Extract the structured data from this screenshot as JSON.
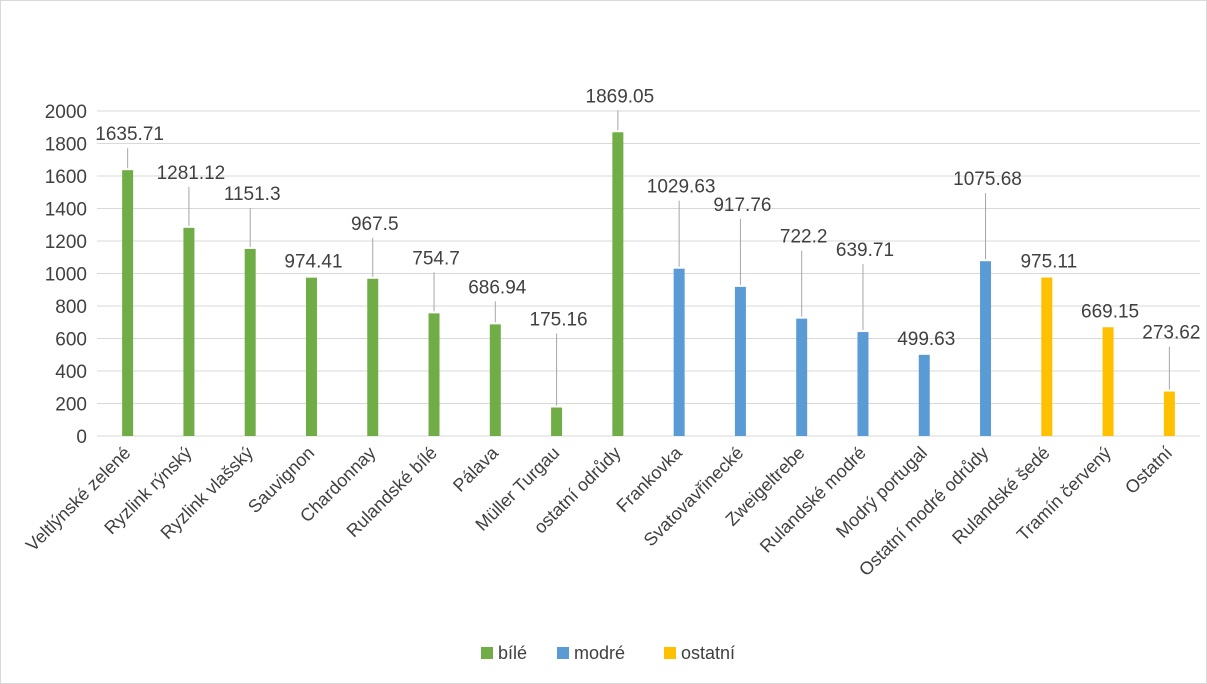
{
  "chart_data": {
    "type": "bar",
    "title": "",
    "xlabel": "",
    "ylabel": "",
    "ylim": [
      0,
      2000
    ],
    "yticks": [
      0,
      200,
      400,
      600,
      800,
      1000,
      1200,
      1400,
      1600,
      1800,
      2000
    ],
    "grid": true,
    "legend_position": "bottom",
    "categories": [
      "Veltlýnské zelené",
      "Ryzlink rýnský",
      "Ryzlink vlašský",
      "Sauvignon",
      "Chardonnay",
      "Rulandské bílé",
      "Pálava",
      "Müller Turgau",
      "ostatní odrůdy",
      "Frankovka",
      "Svatovavřinecké",
      "Zweigeltrebe",
      "Rulandské modré",
      "Modrý portugal",
      "Ostatní modré odrůdy",
      "Rulandské šedé",
      "Tramín červený",
      "Ostatní"
    ],
    "values": [
      1635.71,
      1281.12,
      1151.3,
      974.41,
      967.5,
      754.7,
      686.94,
      175.16,
      1869.05,
      1029.63,
      917.76,
      722.2,
      639.71,
      499.63,
      1075.68,
      975.11,
      669.15,
      273.62
    ],
    "data_labels": [
      "1635.71",
      "1281.12",
      "1151.3",
      "974.41",
      "967.5",
      "754.7",
      "686.94",
      "175.16",
      "1869.05",
      "1029.63",
      "917.76",
      "722.2",
      "639.71",
      "499.63",
      "1075.68",
      "975.11",
      "669.15",
      "273.62"
    ],
    "series_index": [
      0,
      0,
      0,
      0,
      0,
      0,
      0,
      0,
      0,
      1,
      1,
      1,
      1,
      1,
      1,
      2,
      2,
      2
    ],
    "series": [
      {
        "name": "bílé",
        "color": "#70ad47"
      },
      {
        "name": "modré",
        "color": "#5b9bd5"
      },
      {
        "name": "ostatní",
        "color": "#ffc000"
      }
    ]
  }
}
